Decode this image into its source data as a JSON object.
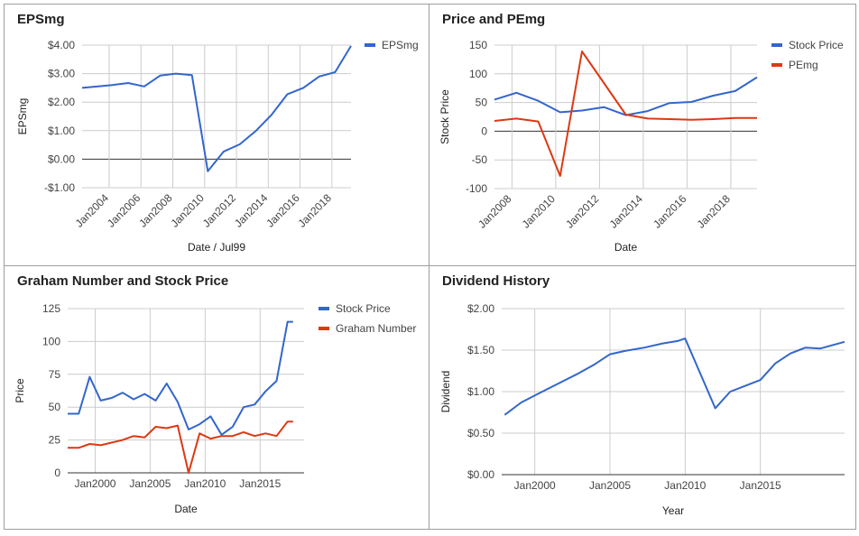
{
  "chart_data": [
    {
      "id": "eps",
      "type": "line",
      "title": "EPSmg",
      "xlabel": "Date / Jul99",
      "ylabel": "EPSmg",
      "xlim": [
        2002.3,
        2019.2
      ],
      "ylim": [
        -1,
        4
      ],
      "yticks": [
        -1,
        0,
        1,
        2,
        3,
        4
      ],
      "yticklabels": [
        "-$1.00",
        "$0.00",
        "$1.00",
        "$2.00",
        "$3.00",
        "$4.00"
      ],
      "xticks": [
        2004,
        2006,
        2008,
        2010,
        2012,
        2014,
        2016,
        2018
      ],
      "xticklabels": [
        "Jan2004",
        "Jan2006",
        "Jan2008",
        "Jan2010",
        "Jan2012",
        "Jan2014",
        "Jan2016",
        "Jan2018"
      ],
      "legend_position": "right",
      "series": [
        {
          "name": "EPSmg",
          "color": "#3366cc",
          "x": [
            2002.3,
            2004.2,
            2005.2,
            2006.2,
            2007.2,
            2008.2,
            2009.2,
            2010.2,
            2011.2,
            2012.2,
            2013.2,
            2014.2,
            2015.2,
            2016.2,
            2017.2,
            2018.2,
            2019.2
          ],
          "y": [
            2.5,
            2.6,
            2.67,
            2.55,
            2.93,
            3.0,
            2.95,
            -0.42,
            0.27,
            0.52,
            0.98,
            1.55,
            2.28,
            2.5,
            2.9,
            3.05,
            3.97
          ]
        }
      ]
    },
    {
      "id": "pe",
      "type": "line",
      "title": "Price and PEmg",
      "xlabel": "Date",
      "ylabel": "Stock Price",
      "xlim": [
        2007.2,
        2019.2
      ],
      "ylim": [
        -100,
        150
      ],
      "yticks": [
        -100,
        -50,
        0,
        50,
        100,
        150
      ],
      "yticklabels": [
        "-100",
        "-50",
        "0",
        "50",
        "100",
        "150"
      ],
      "xticks": [
        2008,
        2010,
        2012,
        2014,
        2016,
        2018
      ],
      "xticklabels": [
        "Jan2008",
        "Jan2010",
        "Jan2012",
        "Jan2014",
        "Jan2016",
        "Jan2018"
      ],
      "legend_position": "right",
      "series": [
        {
          "name": "Stock Price",
          "color": "#3366cc",
          "x": [
            2007.2,
            2008.2,
            2009.2,
            2010.2,
            2011.2,
            2012.2,
            2013.2,
            2014.2,
            2015.2,
            2016.2,
            2017.2,
            2018.2,
            2019.2
          ],
          "y": [
            55,
            67,
            53,
            33,
            36,
            42,
            28,
            35,
            49,
            51,
            62,
            70,
            94
          ]
        },
        {
          "name": "PEmg",
          "color": "#dc3912",
          "x": [
            2007.2,
            2008.2,
            2009.2,
            2010.2,
            2011.2,
            2012.2,
            2013.2,
            2014.2,
            2015.2,
            2016.2,
            2017.2,
            2018.2,
            2019.2
          ],
          "y": [
            18,
            22,
            17,
            -78,
            139,
            84,
            29,
            22,
            21,
            20,
            21,
            23,
            23
          ]
        }
      ]
    },
    {
      "id": "graham",
      "type": "line",
      "title": "Graham Number and Stock Price",
      "xlabel": "Date",
      "ylabel": "Price",
      "xlim": [
        1997.5,
        2019.0
      ],
      "ylim": [
        0,
        125
      ],
      "yticks": [
        0,
        25,
        50,
        75,
        100,
        125
      ],
      "yticklabels": [
        "0",
        "25",
        "50",
        "75",
        "100",
        "125"
      ],
      "xticks": [
        2000,
        2005,
        2010,
        2015
      ],
      "xticklabels": [
        "Jan2000",
        "Jan2005",
        "Jan2010",
        "Jan2015"
      ],
      "legend_position": "right",
      "series": [
        {
          "name": "Stock Price",
          "color": "#3366cc",
          "x": [
            1997.5,
            1998.5,
            1999.5,
            2000.5,
            2001.5,
            2002.5,
            2003.5,
            2004.5,
            2005.5,
            2006.5,
            2007.5,
            2008.5,
            2009.5,
            2010.5,
            2011.5,
            2012.5,
            2013.5,
            2014.5,
            2015.5,
            2016.5,
            2017.5,
            2018.0
          ],
          "y": [
            45,
            45,
            73,
            55,
            57,
            61,
            56,
            60,
            55,
            68,
            54,
            33,
            37,
            43,
            29,
            35,
            50,
            52,
            62,
            70,
            115,
            115
          ]
        },
        {
          "name": "Graham Number",
          "color": "#dc3912",
          "x": [
            1997.5,
            1998.5,
            1999.5,
            2000.5,
            2001.5,
            2002.5,
            2003.5,
            2004.5,
            2005.5,
            2006.5,
            2007.5,
            2008.5,
            2009.5,
            2010.5,
            2011.5,
            2012.5,
            2013.5,
            2014.5,
            2015.5,
            2016.5,
            2017.5,
            2018.0
          ],
          "y": [
            19,
            19,
            22,
            21,
            23,
            25,
            28,
            27,
            35,
            34,
            36,
            0,
            30,
            26,
            28,
            28,
            31,
            28,
            30,
            28,
            39,
            39
          ]
        }
      ]
    },
    {
      "id": "div",
      "type": "line",
      "title": "Dividend History",
      "xlabel": "Year",
      "ylabel": "Dividend",
      "xlim": [
        1997.8,
        2020.6
      ],
      "ylim": [
        0,
        2
      ],
      "yticks": [
        0,
        0.5,
        1,
        1.5,
        2
      ],
      "yticklabels": [
        "$0.00",
        "$0.50",
        "$1.00",
        "$1.50",
        "$2.00"
      ],
      "xticks": [
        2000,
        2005,
        2010,
        2015
      ],
      "xticklabels": [
        "Jan2000",
        "Jan2005",
        "Jan2010",
        "Jan2015"
      ],
      "legend_position": "none",
      "series": [
        {
          "name": "",
          "color": "#3366cc",
          "x": [
            1998.0,
            1999.1,
            2000.5,
            2002.8,
            2004.0,
            2005.0,
            2006.0,
            2007.3,
            2008.5,
            2009.5,
            2010.0,
            2012.0,
            2013.0,
            2014.0,
            2015.0,
            2016.0,
            2017.0,
            2018.0,
            2019.0,
            2020.6
          ],
          "y": [
            0.72,
            0.87,
            1.0,
            1.21,
            1.33,
            1.45,
            1.49,
            1.53,
            1.58,
            1.61,
            1.64,
            0.8,
            1.0,
            1.07,
            1.14,
            1.34,
            1.46,
            1.53,
            1.52,
            1.6
          ]
        }
      ]
    }
  ]
}
